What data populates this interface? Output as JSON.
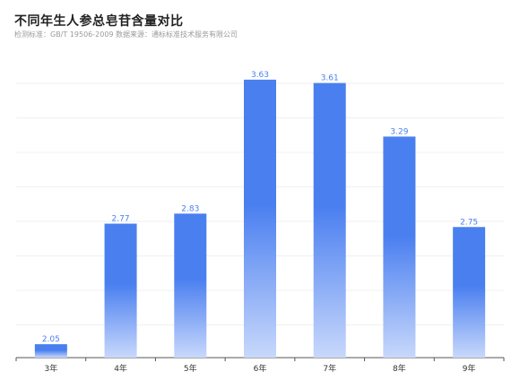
{
  "header": {
    "title": "不同年生人参总皂苷含量对比",
    "subtitle": "检测标准：GB/T 19506-2009 数据来源：通标标准技术服务有限公司"
  },
  "colors": {
    "bar_top": "#4a7ff0",
    "bar_bottom": "#c8d8fb",
    "grid": "#f0f0f0",
    "axis": "#555555",
    "label": "#4a7ff0"
  },
  "chart_data": {
    "type": "bar",
    "categories": [
      "3年",
      "4年",
      "5年",
      "6年",
      "7年",
      "8年",
      "9年"
    ],
    "values": [
      2.05,
      2.77,
      2.83,
      3.63,
      3.61,
      3.29,
      2.75
    ],
    "title": "不同年生人参总皂苷含量对比",
    "subtitle": "检测标准：GB/T 19506-2009 数据来源：通标标准技术服务有限公司",
    "xlabel": "",
    "ylabel": "",
    "ylim": [
      2.0,
      3.65
    ],
    "grid": true,
    "data_labels": true
  }
}
